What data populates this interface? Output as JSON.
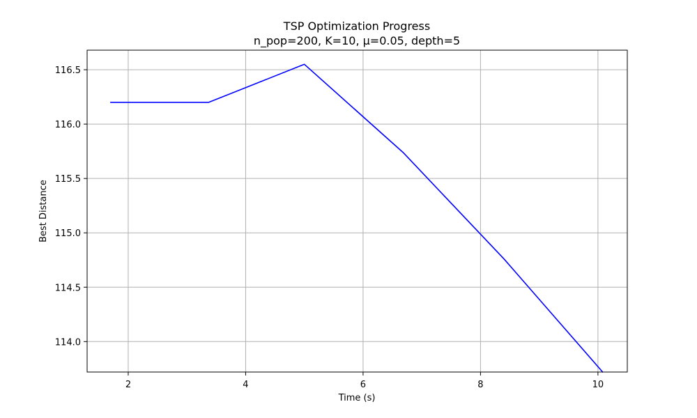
{
  "chart_data": {
    "type": "line",
    "title": "TSP Optimization Progress",
    "subtitle": "n_pop=200, K=10, μ=0.05, depth=5",
    "xlabel": "Time (s)",
    "ylabel": "Best Distance",
    "xlim": [
      1.3,
      10.5
    ],
    "ylim": [
      113.72,
      116.68
    ],
    "grid": true,
    "x_ticks": [
      {
        "value": 2,
        "label": "2"
      },
      {
        "value": 4,
        "label": "4"
      },
      {
        "value": 6,
        "label": "6"
      },
      {
        "value": 8,
        "label": "8"
      },
      {
        "value": 10,
        "label": "10"
      }
    ],
    "y_ticks": [
      {
        "value": 114.0,
        "label": "114.0"
      },
      {
        "value": 114.5,
        "label": "114.5"
      },
      {
        "value": 115.0,
        "label": "115.0"
      },
      {
        "value": 115.5,
        "label": "115.5"
      },
      {
        "value": 116.0,
        "label": "116.0"
      },
      {
        "value": 116.5,
        "label": "116.5"
      }
    ],
    "series": [
      {
        "color": "#0000ff",
        "x": [
          1.7,
          3.37,
          5.0,
          6.68,
          8.4,
          10.08
        ],
        "y": [
          116.2,
          116.2,
          116.55,
          115.74,
          114.76,
          113.72
        ]
      }
    ]
  }
}
